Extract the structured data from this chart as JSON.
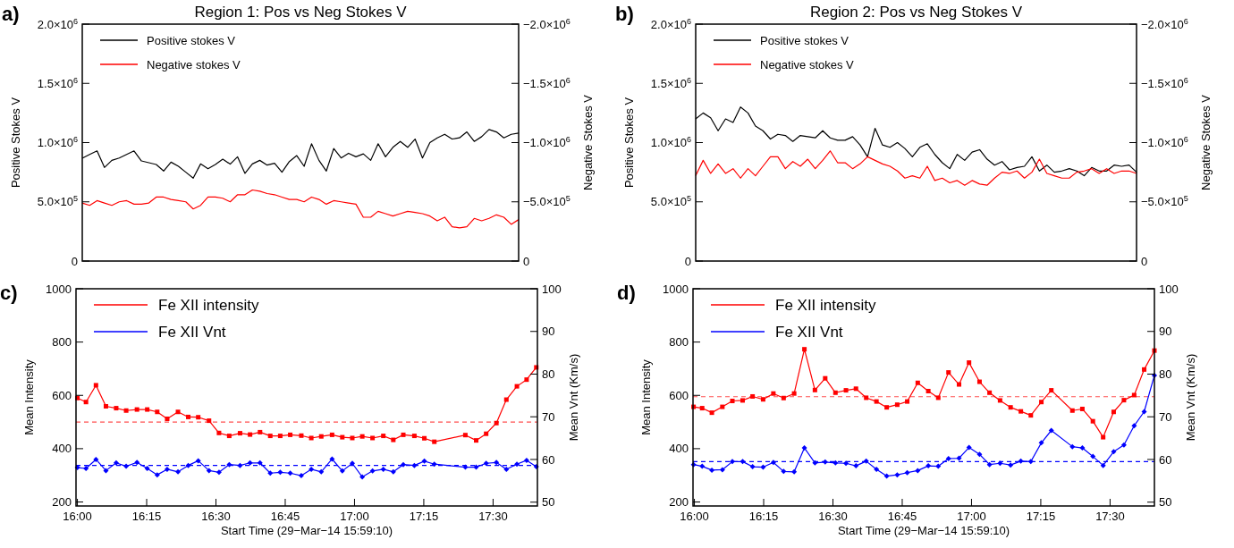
{
  "chart_data": [
    {
      "type": "line",
      "title": "Region 1: Pos vs Neg Stokes V",
      "ylabel": "Positive Stokes V",
      "y2label": "Negative Stokes V",
      "annotations": [
        "a)"
      ],
      "legend": "top left",
      "grid": false,
      "categories": [
        null,
        null,
        null,
        null,
        null,
        null,
        null,
        null,
        null,
        null,
        null,
        null,
        null,
        null,
        null,
        null,
        null,
        null,
        null,
        null,
        null,
        null,
        null,
        null,
        null,
        null,
        null,
        null,
        null,
        null,
        null,
        null,
        null,
        null,
        null,
        null,
        null,
        null,
        null,
        null,
        null,
        null,
        null,
        null,
        null,
        null,
        null,
        null,
        null,
        null,
        null,
        null,
        null,
        null,
        null,
        null,
        null,
        null,
        null,
        null
      ],
      "ylim": [
        0,
        2000000
      ],
      "yticks": [
        0,
        {
          "value": 500000,
          "label": "5.0×10$^{5}$"
        },
        {
          "value": 1000000,
          "label": "1.0×10$^{6}$"
        },
        {
          "value": 1500000,
          "label": "1.5×10$^{6}$"
        },
        {
          "value": 2000000,
          "label": "2.0×10$^{6}$"
        }
      ],
      "y2lim": [
        0,
        -2000000
      ],
      "y2ticks": [
        0,
        {
          "value": -500000,
          "label": "−5.0×10$^{5}$"
        },
        {
          "value": -1000000,
          "label": "−1.0×10$^{6}$"
        },
        {
          "value": -1500000,
          "label": "−1.5×10$^{6}$"
        },
        {
          "value": -2000000,
          "label": "−2.0×10$^{6}$"
        }
      ],
      "series": [
        {
          "name": "Positive stokes V",
          "color": "#000000",
          "line_style": "solid",
          "values": [
            868000,
            900000,
            930000,
            790000,
            850000,
            870000,
            900000,
            930000,
            845000,
            830000,
            815000,
            760000,
            835000,
            800000,
            750000,
            700000,
            820000,
            780000,
            815000,
            860000,
            818000,
            880000,
            740000,
            820000,
            850000,
            810000,
            825000,
            750000,
            840000,
            890000,
            800000,
            990000,
            850000,
            760000,
            950000,
            870000,
            910000,
            880000,
            905000,
            850000,
            990000,
            880000,
            960000,
            1010000,
            960000,
            1030000,
            870000,
            1000000,
            1040000,
            1070000,
            1030000,
            1040000,
            1090000,
            1010000,
            1050000,
            1110000,
            1090000,
            1040000,
            1070000,
            1080000
          ]
        },
        {
          "name": "Negative stokes V",
          "color": "#ff0000",
          "line_style": "solid",
          "axis": "y2",
          "values": [
            -490000,
            -470000,
            -510000,
            -490000,
            -470000,
            -500000,
            -510000,
            -480000,
            -480000,
            -490000,
            -540000,
            -540000,
            -520000,
            -510000,
            -500000,
            -440000,
            -470000,
            -540000,
            -540000,
            -530000,
            -500000,
            -560000,
            -560000,
            -600000,
            -590000,
            -570000,
            -560000,
            -540000,
            -520000,
            -520000,
            -500000,
            -540000,
            -520000,
            -480000,
            -510000,
            -500000,
            -490000,
            -480000,
            -370000,
            -370000,
            -420000,
            -400000,
            -380000,
            -400000,
            -420000,
            -410000,
            -400000,
            -380000,
            -340000,
            -370000,
            -290000,
            -280000,
            -290000,
            -360000,
            -340000,
            -360000,
            -390000,
            -370000,
            -310000,
            -350000
          ]
        }
      ]
    },
    {
      "type": "line",
      "title": "Region 2: Pos vs Neg Stokes V",
      "ylabel": "Positive Stokes V",
      "y2label": "Negative Stokes V",
      "annotations": [
        "b)"
      ],
      "legend": "top left",
      "grid": false,
      "categories": [
        null,
        null,
        null,
        null,
        null,
        null,
        null,
        null,
        null,
        null,
        null,
        null,
        null,
        null,
        null,
        null,
        null,
        null,
        null,
        null,
        null,
        null,
        null,
        null,
        null,
        null,
        null,
        null,
        null,
        null,
        null,
        null,
        null,
        null,
        null,
        null,
        null,
        null,
        null,
        null,
        null,
        null,
        null,
        null,
        null,
        null,
        null,
        null,
        null,
        null,
        null,
        null,
        null,
        null,
        null,
        null,
        null,
        null,
        null,
        null
      ],
      "ylim": [
        0,
        2000000
      ],
      "yticks": [
        0,
        {
          "value": 500000,
          "label": "5.0×10$^{5}$"
        },
        {
          "value": 1000000,
          "label": "1.0×10$^{6}$"
        },
        {
          "value": 1500000,
          "label": "1.5×10$^{6}$"
        },
        {
          "value": 2000000,
          "label": "2.0×10$^{6}$"
        }
      ],
      "y2lim": [
        0,
        -2000000
      ],
      "y2ticks": [
        0,
        {
          "value": -500000,
          "label": "−5.0×10$^{5}$"
        },
        {
          "value": -1000000,
          "label": "−1.0×10$^{6}$"
        },
        {
          "value": -1500000,
          "label": "−1.5×10$^{6}$"
        },
        {
          "value": -2000000,
          "label": "−2.0×10$^{6}$"
        }
      ],
      "series": [
        {
          "name": "Positive stokes V",
          "color": "#000000",
          "line_style": "solid",
          "values": [
            1200000,
            1250000,
            1210000,
            1100000,
            1200000,
            1170000,
            1300000,
            1250000,
            1140000,
            1100000,
            1030000,
            1070000,
            1060000,
            1010000,
            1060000,
            1050000,
            1040000,
            1100000,
            1040000,
            1020000,
            1020000,
            1050000,
            980000,
            880000,
            1120000,
            980000,
            960000,
            1000000,
            950000,
            880000,
            960000,
            990000,
            900000,
            830000,
            780000,
            900000,
            850000,
            920000,
            940000,
            860000,
            810000,
            840000,
            770000,
            790000,
            800000,
            880000,
            760000,
            810000,
            750000,
            760000,
            780000,
            760000,
            720000,
            790000,
            760000,
            760000,
            810000,
            800000,
            810000,
            750000
          ]
        },
        {
          "name": "Negative stokes V",
          "color": "#ff0000",
          "line_style": "solid",
          "axis": "y2",
          "values": [
            -720000,
            -850000,
            -740000,
            -820000,
            -740000,
            -780000,
            -700000,
            -780000,
            -720000,
            -800000,
            -880000,
            -880000,
            -780000,
            -840000,
            -800000,
            -860000,
            -780000,
            -850000,
            -930000,
            -830000,
            -830000,
            -780000,
            -820000,
            -880000,
            -850000,
            -820000,
            -800000,
            -760000,
            -700000,
            -720000,
            -700000,
            -800000,
            -680000,
            -700000,
            -660000,
            -680000,
            -640000,
            -680000,
            -650000,
            -640000,
            -700000,
            -750000,
            -740000,
            -760000,
            -700000,
            -750000,
            -860000,
            -740000,
            -720000,
            -700000,
            -700000,
            -750000,
            -760000,
            -780000,
            -740000,
            -780000,
            -740000,
            -760000,
            -760000,
            -740000
          ]
        }
      ]
    },
    {
      "type": "line",
      "xlabel": "Start Time (29−Mar−14 15:59:10)",
      "ylabel": "Mean Intensity",
      "y2label": "Mean Vnt (Km/s)",
      "annotations": [
        "c)"
      ],
      "legend": "top left",
      "grid": false,
      "xlim": [
        15.995,
        17.66
      ],
      "xticks": [
        {
          "value": 16,
          "label": "16:00"
        },
        {
          "value": 16.25,
          "label": "16:15"
        },
        {
          "value": 16.5,
          "label": "16:30"
        },
        {
          "value": 16.75,
          "label": "16:45"
        },
        {
          "value": 17,
          "label": "17:00"
        },
        {
          "value": 17.25,
          "label": "17:15"
        },
        {
          "value": 17.5,
          "label": "17:30"
        }
      ],
      "ylim": [
        185,
        1000
      ],
      "yticks": [
        200,
        400,
        600,
        800,
        1000
      ],
      "y2lim": [
        49.1,
        100
      ],
      "y2ticks": [
        50,
        60,
        70,
        80,
        90,
        100
      ],
      "x": [
        16.0,
        16.031,
        16.067,
        16.103,
        16.14,
        16.176,
        16.215,
        16.252,
        16.288,
        16.324,
        16.363,
        16.4,
        16.436,
        16.475,
        16.511,
        16.548,
        16.587,
        16.623,
        16.659,
        16.696,
        16.732,
        16.768,
        16.808,
        16.844,
        16.88,
        16.919,
        16.956,
        16.992,
        17.028,
        17.065,
        17.104,
        17.14,
        17.176,
        17.216,
        17.252,
        17.288,
        17.4,
        17.439,
        17.475,
        17.512,
        17.548,
        17.586,
        17.621,
        17.656
      ],
      "ref_lines": [
        {
          "axis": "y",
          "value": 500,
          "color": "#ff5050",
          "line_style": "dashed"
        },
        {
          "axis": "y2",
          "value": 58.6,
          "color": "#0000ff",
          "line_style": "dashed"
        }
      ],
      "series": [
        {
          "name": "Fe XII intensity",
          "color": "#ff0000",
          "line_style": "solid",
          "marker": "square",
          "values": [
            590,
            575,
            638,
            559,
            552,
            543,
            547,
            547,
            538,
            512,
            538,
            519,
            518,
            505,
            459,
            448,
            458,
            453,
            462,
            448,
            448,
            452,
            449,
            440,
            446,
            452,
            443,
            440,
            446,
            440,
            448,
            433,
            452,
            448,
            439,
            426,
            451,
            431,
            456,
            496,
            584,
            634,
            659,
            705
          ]
        },
        {
          "name": "Fe XII Vnt",
          "color": "#0000ff",
          "line_style": "solid",
          "marker": "diamond",
          "axis": "y2",
          "values": [
            58.1,
            57.9,
            60.0,
            57.4,
            59.2,
            58.4,
            59.3,
            57.9,
            56.4,
            57.7,
            57.1,
            58.6,
            59.7,
            57.4,
            57.0,
            58.8,
            58.6,
            59.2,
            59.2,
            56.8,
            57.0,
            56.8,
            56.2,
            57.7,
            57.1,
            60.1,
            57.3,
            59.1,
            55.9,
            57.3,
            57.7,
            57.1,
            58.8,
            58.6,
            59.6,
            58.9,
            58.2,
            58.2,
            59.1,
            59.3,
            57.7,
            58.9,
            59.8,
            58.3
          ]
        }
      ]
    },
    {
      "type": "line",
      "xlabel": "Start Time (29−Mar−14 15:59:10)",
      "ylabel": "Mean Intensity",
      "y2label": "Mean Vnt (Km/s)",
      "annotations": [
        "d)"
      ],
      "legend": "top left",
      "grid": false,
      "xlim": [
        15.995,
        17.66
      ],
      "xticks": [
        {
          "value": 16,
          "label": "16:00"
        },
        {
          "value": 16.25,
          "label": "16:15"
        },
        {
          "value": 16.5,
          "label": "16:30"
        },
        {
          "value": 16.75,
          "label": "16:45"
        },
        {
          "value": 17,
          "label": "17:00"
        },
        {
          "value": 17.25,
          "label": "17:15"
        },
        {
          "value": 17.5,
          "label": "17:30"
        }
      ],
      "ylim": [
        185,
        1000
      ],
      "yticks": [
        200,
        400,
        600,
        800,
        1000
      ],
      "y2lim": [
        49.1,
        100
      ],
      "y2ticks": [
        50,
        60,
        70,
        80,
        90,
        100
      ],
      "x": [
        15.997,
        16.028,
        16.063,
        16.101,
        16.137,
        16.174,
        16.21,
        16.248,
        16.285,
        16.322,
        16.36,
        16.397,
        16.435,
        16.472,
        16.509,
        16.547,
        16.583,
        16.62,
        16.657,
        16.694,
        16.732,
        16.768,
        16.806,
        16.844,
        16.88,
        16.917,
        16.955,
        16.991,
        17.029,
        17.065,
        17.103,
        17.141,
        17.178,
        17.214,
        17.252,
        17.288,
        17.364,
        17.4,
        17.438,
        17.475,
        17.513,
        17.55,
        17.587,
        17.623,
        17.66
      ],
      "ref_lines": [
        {
          "axis": "y",
          "value": 595,
          "color": "#ff5050",
          "line_style": "dashed"
        },
        {
          "axis": "y2",
          "value": 59.5,
          "color": "#0000ff",
          "line_style": "dashed"
        }
      ],
      "series": [
        {
          "name": "Fe XII intensity",
          "color": "#ff0000",
          "line_style": "solid",
          "marker": "square",
          "values": [
            557,
            552,
            535,
            557,
            579,
            581,
            596,
            585,
            607,
            590,
            607,
            773,
            620,
            664,
            610,
            619,
            625,
            591,
            577,
            555,
            565,
            577,
            647,
            616,
            591,
            686,
            641,
            723,
            651,
            610,
            581,
            555,
            540,
            525,
            575,
            619,
            543,
            549,
            503,
            443,
            538,
            582,
            601,
            697,
            768
          ]
        },
        {
          "name": "Fe XII Vnt",
          "color": "#0000ff",
          "line_style": "solid",
          "marker": "diamond",
          "axis": "y2",
          "values": [
            58.8,
            58.4,
            57.5,
            57.6,
            59.5,
            59.5,
            58.3,
            58.2,
            59.3,
            57.2,
            57.1,
            62.7,
            59.2,
            59.4,
            59.2,
            59.1,
            58.5,
            59.6,
            57.7,
            56.1,
            56.4,
            56.9,
            57.4,
            58.5,
            58.4,
            60.2,
            60.3,
            62.8,
            61.2,
            58.8,
            59.1,
            58.7,
            59.6,
            59.5,
            63.9,
            66.8,
            63.0,
            62.7,
            60.7,
            58.6,
            61.8,
            63.4,
            67.9,
            71.2,
            79.7
          ]
        }
      ]
    }
  ]
}
